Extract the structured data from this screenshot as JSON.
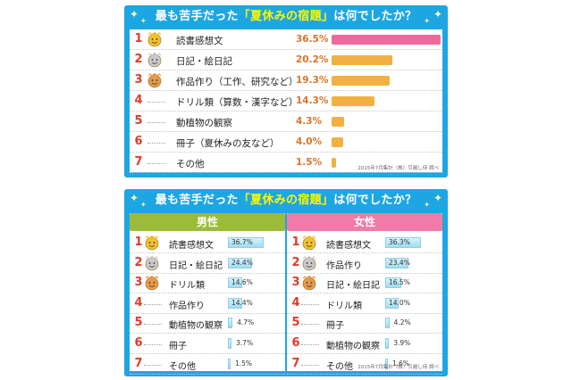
{
  "chart_data": [
    {
      "type": "bar",
      "title_prefix": "最も苦手だった",
      "title_highlight": "「夏休みの宿題」",
      "title_suffix": "は何でしたか？",
      "categories": [
        "読書感想文",
        "日記・絵日記",
        "作品作り（工作、研究など）",
        "ドリル類（算数・漢字など）",
        "動植物の観察",
        "冊子（夏休みの友など）",
        "その他"
      ],
      "ranks": [
        "1",
        "2",
        "3",
        "4",
        "5",
        "6",
        "7"
      ],
      "values": [
        36.5,
        20.2,
        19.3,
        14.3,
        4.3,
        4.0,
        1.5
      ],
      "value_labels": [
        "36.5%",
        "20.2%",
        "19.3%",
        "14.3%",
        "4.3%",
        "4.0%",
        "1.5%"
      ],
      "bar_colors": [
        "#ee6a9e",
        "#f3b042",
        "#f3b042",
        "#f3b042",
        "#f3b042",
        "#f3b042",
        "#f3b042"
      ],
      "source_note": "2015年7月集計（株）引越し侍 調べ"
    },
    {
      "type": "bar",
      "title_prefix": "最も苦手だった",
      "title_highlight": "「夏休みの宿題」",
      "title_suffix": "は何でしたか？",
      "groups": [
        {
          "name": "男性",
          "color": "#9bbb3b",
          "ranks": [
            "1",
            "2",
            "3",
            "4",
            "5",
            "6",
            "7"
          ],
          "categories": [
            "読書感想文",
            "日記・絵日記",
            "ドリル類",
            "作品作り",
            "動植物の観察",
            "冊子",
            "その他"
          ],
          "values": [
            36.7,
            24.4,
            14.6,
            14.4,
            4.7,
            3.7,
            1.5
          ],
          "value_labels": [
            "36.7%",
            "24.4%",
            "14.6%",
            "14.4%",
            "4.7%",
            "3.7%",
            "1.5%"
          ]
        },
        {
          "name": "女性",
          "color": "#f07aa8",
          "ranks": [
            "1",
            "2",
            "3",
            "4",
            "5",
            "6",
            "7"
          ],
          "categories": [
            "読書感想文",
            "作品作り",
            "日記・絵日記",
            "ドリル類",
            "冊子",
            "動植物の観察",
            "その他"
          ],
          "values": [
            36.3,
            23.4,
            16.5,
            14.0,
            4.2,
            3.9,
            1.6
          ],
          "value_labels": [
            "36.3%",
            "23.4%",
            "16.5%",
            "14.0%",
            "4.2%",
            "3.9%",
            "1.6%"
          ]
        }
      ],
      "source_note": "2015年7月集計（株）引越し侍 調べ"
    }
  ],
  "colors": {
    "panel_bg": "#1ea6e3",
    "title_highlight": "#fff600",
    "rank_red": "#e03a2a",
    "pct_orange": "#d8742a",
    "gold": "#f2c12e",
    "silver": "#c9c9c9",
    "bronze": "#e59a4a"
  },
  "icons": [
    "gold-medal-face-icon",
    "silver-medal-face-icon",
    "bronze-medal-face-icon",
    "sparkle-icon"
  ]
}
